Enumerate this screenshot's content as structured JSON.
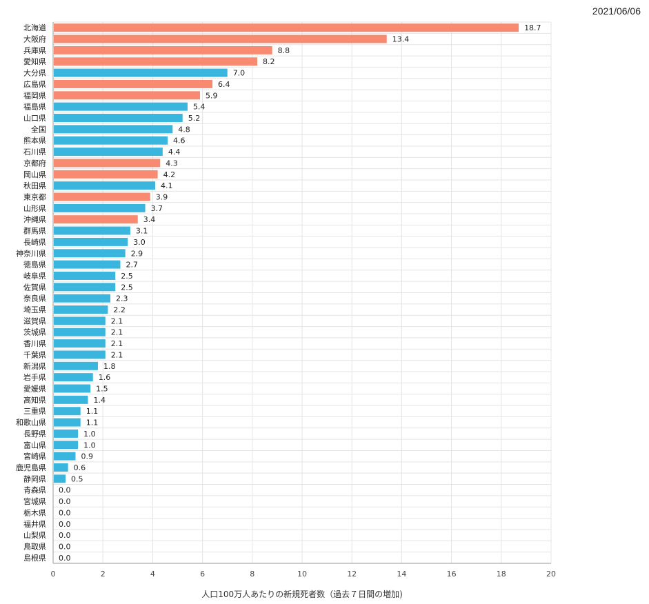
{
  "date": "2021/06/06",
  "colors": {
    "highlight": "#F98A72",
    "normal": "#3AB6DE"
  },
  "chart_data": {
    "type": "bar",
    "orientation": "horizontal",
    "xlabel": "人口100万人あたりの新規死者数（過去７日間の増加)",
    "xlim": [
      0,
      20
    ],
    "xticks": [
      0,
      2,
      4,
      6,
      8,
      10,
      12,
      14,
      16,
      18,
      20
    ],
    "grid": true,
    "categories": [
      "北海道",
      "大阪府",
      "兵庫県",
      "愛知県",
      "大分県",
      "広島県",
      "福岡県",
      "福島県",
      "山口県",
      "全国",
      "熊本県",
      "石川県",
      "京都府",
      "岡山県",
      "秋田県",
      "東京都",
      "山形県",
      "沖縄県",
      "群馬県",
      "長崎県",
      "神奈川県",
      "徳島県",
      "岐阜県",
      "佐賀県",
      "奈良県",
      "埼玉県",
      "滋賀県",
      "茨城県",
      "香川県",
      "千葉県",
      "新潟県",
      "岩手県",
      "愛媛県",
      "高知県",
      "三重県",
      "和歌山県",
      "長野県",
      "富山県",
      "宮崎県",
      "鹿児島県",
      "静岡県",
      "青森県",
      "宮城県",
      "栃木県",
      "福井県",
      "山梨県",
      "鳥取県",
      "島根県"
    ],
    "values": [
      18.7,
      13.4,
      8.8,
      8.2,
      7.0,
      6.4,
      5.9,
      5.4,
      5.2,
      4.8,
      4.6,
      4.4,
      4.3,
      4.2,
      4.1,
      3.9,
      3.7,
      3.4,
      3.1,
      3.0,
      2.9,
      2.7,
      2.5,
      2.5,
      2.3,
      2.2,
      2.1,
      2.1,
      2.1,
      2.1,
      1.8,
      1.6,
      1.5,
      1.4,
      1.1,
      1.1,
      1.0,
      1.0,
      0.9,
      0.6,
      0.5,
      0.0,
      0.0,
      0.0,
      0.0,
      0.0,
      0.0,
      0.0
    ],
    "value_labels": [
      "18.7",
      "13.4",
      "8.8",
      "8.2",
      "7.0",
      "6.4",
      "5.9",
      "5.4",
      "5.2",
      "4.8",
      "4.6",
      "4.4",
      "4.3",
      "4.2",
      "4.1",
      "3.9",
      "3.7",
      "3.4",
      "3.1",
      "3.0",
      "2.9",
      "2.7",
      "2.5",
      "2.5",
      "2.3",
      "2.2",
      "2.1",
      "2.1",
      "2.1",
      "2.1",
      "1.8",
      "1.6",
      "1.5",
      "1.4",
      "1.1",
      "1.1",
      "1.0",
      "1.0",
      "0.9",
      "0.6",
      "0.5",
      "0.0",
      "0.0",
      "0.0",
      "0.0",
      "0.0",
      "0.0",
      "0.0"
    ],
    "highlight": [
      true,
      true,
      true,
      true,
      false,
      true,
      true,
      false,
      false,
      false,
      false,
      false,
      true,
      true,
      false,
      true,
      false,
      true,
      false,
      false,
      false,
      false,
      false,
      false,
      false,
      false,
      false,
      false,
      false,
      false,
      false,
      false,
      false,
      false,
      false,
      false,
      false,
      false,
      false,
      false,
      false,
      false,
      false,
      false,
      false,
      false,
      false,
      false
    ]
  }
}
